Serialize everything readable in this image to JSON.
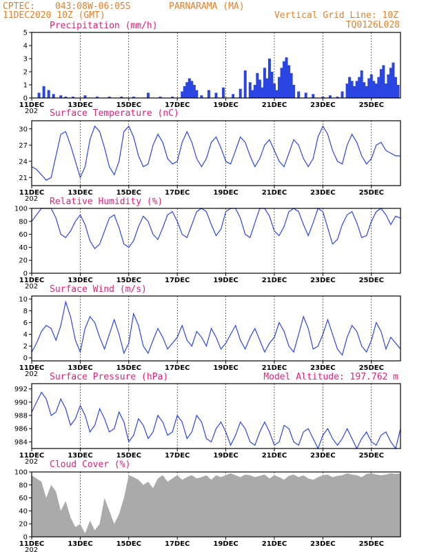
{
  "header": {
    "source": "CPTEC:",
    "coords": "043:08W-06:05S",
    "location": "PARNARAMA (MA)",
    "run": "11DEC2020 10Z (GMT)",
    "grid_note": "Vertical Grid Line: 10Z",
    "model": "TQ0126L028"
  },
  "x_axis": {
    "day_min": 11.0,
    "day_max": 26.2,
    "tick_labels": [
      "11DEC",
      "13DEC",
      "15DEC",
      "17DEC",
      "19DEC",
      "21DEC",
      "23DEC",
      "25DEC"
    ],
    "tick_days": [
      11,
      13,
      15,
      17,
      19,
      21,
      23,
      25
    ],
    "year_fragment": "202"
  },
  "model_altitude": "Model Altitude: 197.762 m",
  "colors": {
    "line": "#2b46e0",
    "bars": "#2b46e0",
    "cloud": "#aaaaaa",
    "title": "#e0207a",
    "header": "#e0802a"
  },
  "chart_data": [
    {
      "id": "precip",
      "type": "bar",
      "title": "Precipitation (mm/h)",
      "ylim": [
        0,
        5
      ],
      "yticks": [
        0,
        1,
        2,
        3,
        4,
        5
      ],
      "x": [
        11.3,
        11.5,
        11.7,
        11.9,
        12.2,
        12.4,
        12.7,
        13.2,
        13.7,
        14.2,
        14.7,
        15.2,
        15.8,
        16.3,
        16.8,
        17.2,
        17.3,
        17.4,
        17.5,
        17.6,
        17.7,
        17.8,
        18.0,
        18.3,
        18.6,
        18.9,
        19.3,
        19.6,
        19.8,
        20.0,
        20.1,
        20.2,
        20.3,
        20.4,
        20.5,
        20.6,
        20.7,
        20.8,
        20.9,
        21.0,
        21.1,
        21.2,
        21.3,
        21.4,
        21.5,
        21.6,
        21.7,
        21.8,
        22.0,
        22.3,
        22.6,
        23.0,
        23.3,
        23.6,
        23.8,
        24.0,
        24.1,
        24.2,
        24.3,
        24.4,
        24.5,
        24.6,
        24.7,
        24.8,
        24.9,
        25.0,
        25.1,
        25.2,
        25.3,
        25.4,
        25.5,
        25.6,
        25.7,
        25.8,
        25.9,
        26.0,
        26.1
      ],
      "values": [
        0.4,
        0.9,
        0.6,
        0.3,
        0.2,
        0.1,
        0.1,
        0.2,
        0.1,
        0.1,
        0.1,
        0.1,
        0.4,
        0.1,
        0.1,
        0.5,
        0.9,
        1.2,
        1.5,
        1.3,
        1.0,
        0.6,
        0.2,
        0.6,
        0.4,
        0.8,
        0.3,
        0.7,
        2.1,
        1.2,
        0.6,
        1.0,
        1.9,
        1.4,
        0.8,
        2.3,
        1.5,
        3.0,
        2.0,
        1.1,
        0.6,
        1.6,
        2.3,
        2.8,
        3.1,
        2.5,
        1.9,
        1.0,
        0.5,
        0.4,
        0.3,
        0.1,
        0.2,
        0.1,
        0.5,
        1.1,
        1.6,
        1.3,
        0.9,
        1.3,
        1.6,
        2.1,
        1.2,
        0.9,
        1.5,
        1.8,
        1.3,
        1.1,
        1.6,
        2.2,
        2.5,
        1.1,
        1.8,
        2.3,
        2.7,
        1.6,
        1.0
      ]
    },
    {
      "id": "temp",
      "type": "line",
      "title": "Surface Temperature (nC)",
      "ylim": [
        19.5,
        31.5
      ],
      "yticks": [
        21,
        24,
        27,
        30
      ],
      "x": [
        11.0,
        11.2,
        11.4,
        11.6,
        11.8,
        12.0,
        12.2,
        12.4,
        12.6,
        12.8,
        13.0,
        13.2,
        13.4,
        13.6,
        13.8,
        14.0,
        14.2,
        14.4,
        14.6,
        14.8,
        15.0,
        15.2,
        15.4,
        15.6,
        15.8,
        16.0,
        16.2,
        16.4,
        16.6,
        16.8,
        17.0,
        17.2,
        17.4,
        17.6,
        17.8,
        18.0,
        18.2,
        18.4,
        18.6,
        18.8,
        19.0,
        19.2,
        19.4,
        19.6,
        19.8,
        20.0,
        20.2,
        20.4,
        20.6,
        20.8,
        21.0,
        21.2,
        21.4,
        21.6,
        21.8,
        22.0,
        22.2,
        22.4,
        22.6,
        22.8,
        23.0,
        23.2,
        23.4,
        23.6,
        23.8,
        24.0,
        24.2,
        24.4,
        24.6,
        24.8,
        25.0,
        25.2,
        25.4,
        25.6,
        25.8,
        26.0,
        26.2
      ],
      "values": [
        23.0,
        22.5,
        21.5,
        20.5,
        21.0,
        25.0,
        29.0,
        29.5,
        27.0,
        24.0,
        21.0,
        23.0,
        28.0,
        30.5,
        29.5,
        26.5,
        23.0,
        21.5,
        24.0,
        29.5,
        30.5,
        28.5,
        25.0,
        23.0,
        23.5,
        27.0,
        29.0,
        27.5,
        24.5,
        23.5,
        24.0,
        27.5,
        29.5,
        27.5,
        24.5,
        23.0,
        24.5,
        27.5,
        28.5,
        26.5,
        24.0,
        23.5,
        26.0,
        28.5,
        27.5,
        25.0,
        23.0,
        24.5,
        27.0,
        28.0,
        26.0,
        24.0,
        23.0,
        25.5,
        28.0,
        27.0,
        24.5,
        23.0,
        24.5,
        28.5,
        30.5,
        29.0,
        26.0,
        24.0,
        23.5,
        27.0,
        29.0,
        27.5,
        25.0,
        23.5,
        24.5,
        27.0,
        27.5,
        26.0,
        25.5,
        25.0,
        25.0
      ]
    },
    {
      "id": "rh",
      "type": "line",
      "title": "Relative Humidity (%)",
      "ylim": [
        0,
        100
      ],
      "yticks": [
        0,
        20,
        40,
        60,
        80,
        100
      ],
      "x": [
        11.0,
        11.2,
        11.4,
        11.6,
        11.8,
        12.0,
        12.2,
        12.4,
        12.6,
        12.8,
        13.0,
        13.2,
        13.4,
        13.6,
        13.8,
        14.0,
        14.2,
        14.4,
        14.6,
        14.8,
        15.0,
        15.2,
        15.4,
        15.6,
        15.8,
        16.0,
        16.2,
        16.4,
        16.6,
        16.8,
        17.0,
        17.2,
        17.4,
        17.6,
        17.8,
        18.0,
        18.2,
        18.4,
        18.6,
        18.8,
        19.0,
        19.2,
        19.4,
        19.6,
        19.8,
        20.0,
        20.2,
        20.4,
        20.6,
        20.8,
        21.0,
        21.2,
        21.4,
        21.6,
        21.8,
        22.0,
        22.2,
        22.4,
        22.6,
        22.8,
        23.0,
        23.2,
        23.4,
        23.6,
        23.8,
        24.0,
        24.2,
        24.4,
        24.6,
        24.8,
        25.0,
        25.2,
        25.4,
        25.6,
        25.8,
        26.0,
        26.2
      ],
      "values": [
        80,
        90,
        100,
        100,
        100,
        85,
        60,
        55,
        65,
        80,
        90,
        75,
        50,
        38,
        45,
        65,
        85,
        90,
        70,
        45,
        40,
        50,
        72,
        88,
        80,
        60,
        52,
        70,
        90,
        95,
        80,
        60,
        55,
        75,
        95,
        100,
        95,
        75,
        58,
        68,
        95,
        100,
        100,
        85,
        60,
        55,
        78,
        100,
        100,
        88,
        65,
        58,
        72,
        95,
        100,
        95,
        75,
        58,
        78,
        100,
        95,
        70,
        45,
        52,
        75,
        90,
        95,
        78,
        55,
        58,
        80,
        95,
        100,
        90,
        75,
        88,
        85
      ]
    },
    {
      "id": "wind",
      "type": "line",
      "title": "Surface Wind (m/s)",
      "ylim": [
        -0.5,
        10.5
      ],
      "yticks": [
        0,
        2,
        4,
        6,
        8,
        10
      ],
      "x": [
        11.0,
        11.2,
        11.4,
        11.6,
        11.8,
        12.0,
        12.2,
        12.4,
        12.6,
        12.8,
        13.0,
        13.2,
        13.4,
        13.6,
        13.8,
        14.0,
        14.2,
        14.4,
        14.6,
        14.8,
        15.0,
        15.2,
        15.4,
        15.6,
        15.8,
        16.0,
        16.2,
        16.4,
        16.6,
        16.8,
        17.0,
        17.2,
        17.4,
        17.6,
        17.8,
        18.0,
        18.2,
        18.4,
        18.6,
        18.8,
        19.0,
        19.2,
        19.4,
        19.6,
        19.8,
        20.0,
        20.2,
        20.4,
        20.6,
        20.8,
        21.0,
        21.2,
        21.4,
        21.6,
        21.8,
        22.0,
        22.2,
        22.4,
        22.6,
        22.8,
        23.0,
        23.2,
        23.4,
        23.6,
        23.8,
        24.0,
        24.2,
        24.4,
        24.6,
        24.8,
        25.0,
        25.2,
        25.4,
        25.6,
        25.8,
        26.0,
        26.2
      ],
      "values": [
        1.0,
        2.5,
        4.5,
        5.5,
        5.0,
        3.0,
        5.5,
        9.5,
        7.0,
        3.0,
        1.0,
        5.0,
        7.0,
        6.0,
        3.5,
        1.5,
        4.0,
        6.5,
        4.0,
        0.8,
        2.5,
        7.5,
        5.5,
        2.0,
        0.8,
        3.0,
        5.0,
        3.5,
        1.5,
        2.5,
        3.5,
        5.5,
        3.0,
        2.0,
        4.5,
        3.5,
        2.0,
        5.0,
        3.5,
        1.5,
        2.5,
        4.0,
        5.5,
        3.0,
        1.5,
        3.5,
        5.0,
        3.0,
        1.0,
        2.5,
        3.5,
        6.0,
        4.5,
        2.0,
        1.0,
        4.0,
        7.0,
        5.0,
        1.5,
        2.0,
        4.0,
        6.5,
        4.0,
        1.5,
        0.5,
        3.5,
        5.5,
        4.5,
        2.0,
        1.0,
        3.0,
        6.0,
        4.5,
        1.5,
        3.5,
        2.5,
        1.5
      ]
    },
    {
      "id": "pressure",
      "type": "line",
      "title": "Surface Pressure (hPa)",
      "ylim": [
        983,
        992.8
      ],
      "yticks": [
        984,
        986,
        988,
        990,
        992
      ],
      "x": [
        11.0,
        11.2,
        11.4,
        11.6,
        11.8,
        12.0,
        12.2,
        12.4,
        12.6,
        12.8,
        13.0,
        13.2,
        13.4,
        13.6,
        13.8,
        14.0,
        14.2,
        14.4,
        14.6,
        14.8,
        15.0,
        15.2,
        15.4,
        15.6,
        15.8,
        16.0,
        16.2,
        16.4,
        16.6,
        16.8,
        17.0,
        17.2,
        17.4,
        17.6,
        17.8,
        18.0,
        18.2,
        18.4,
        18.6,
        18.8,
        19.0,
        19.2,
        19.4,
        19.6,
        19.8,
        20.0,
        20.2,
        20.4,
        20.6,
        20.8,
        21.0,
        21.2,
        21.4,
        21.6,
        21.8,
        22.0,
        22.2,
        22.4,
        22.6,
        22.8,
        23.0,
        23.2,
        23.4,
        23.6,
        23.8,
        24.0,
        24.2,
        24.4,
        24.6,
        24.8,
        25.0,
        25.2,
        25.4,
        25.6,
        25.8,
        26.0,
        26.2
      ],
      "values": [
        988.5,
        990.0,
        991.5,
        990.5,
        988.0,
        988.5,
        990.5,
        989.0,
        986.5,
        987.5,
        989.5,
        988.0,
        985.5,
        986.5,
        989.0,
        987.5,
        985.5,
        986.0,
        988.5,
        987.0,
        984.0,
        985.0,
        987.5,
        986.5,
        984.5,
        985.5,
        988.0,
        987.0,
        985.0,
        985.5,
        988.0,
        987.0,
        984.5,
        985.5,
        988.0,
        987.0,
        984.5,
        984.0,
        986.0,
        987.0,
        985.5,
        983.5,
        985.0,
        987.0,
        986.0,
        984.0,
        983.5,
        985.5,
        987.0,
        985.5,
        983.5,
        984.0,
        986.5,
        986.0,
        984.0,
        983.5,
        985.5,
        986.0,
        984.5,
        983.0,
        985.0,
        986.0,
        984.5,
        983.5,
        984.5,
        986.0,
        984.5,
        983.0,
        984.5,
        985.5,
        984.0,
        983.5,
        985.0,
        985.5,
        984.0,
        983.0,
        986.0
      ]
    },
    {
      "id": "cloud",
      "type": "area",
      "title": "Cloud Cover (%)",
      "ylim": [
        0,
        100
      ],
      "yticks": [
        0,
        20,
        40,
        60,
        80,
        100
      ],
      "x": [
        11.0,
        11.2,
        11.4,
        11.6,
        11.8,
        12.0,
        12.2,
        12.4,
        12.6,
        12.8,
        13.0,
        13.2,
        13.4,
        13.6,
        13.8,
        14.0,
        14.2,
        14.4,
        14.6,
        14.8,
        15.0,
        15.2,
        15.4,
        15.6,
        15.8,
        16.0,
        16.2,
        16.4,
        16.6,
        16.8,
        17.0,
        17.2,
        17.4,
        17.6,
        17.8,
        18.0,
        18.2,
        18.4,
        18.6,
        18.8,
        19.0,
        19.2,
        19.4,
        19.6,
        19.8,
        20.0,
        20.2,
        20.4,
        20.6,
        20.8,
        21.0,
        21.2,
        21.4,
        21.6,
        21.8,
        22.0,
        22.2,
        22.4,
        22.6,
        22.8,
        23.0,
        23.2,
        23.4,
        23.6,
        23.8,
        24.0,
        24.2,
        24.4,
        24.6,
        24.8,
        25.0,
        25.2,
        25.4,
        25.6,
        25.8,
        26.0,
        26.2
      ],
      "values": [
        95,
        90,
        85,
        60,
        80,
        70,
        40,
        55,
        30,
        15,
        20,
        5,
        25,
        10,
        20,
        60,
        40,
        20,
        35,
        60,
        95,
        92,
        88,
        80,
        85,
        75,
        90,
        95,
        85,
        90,
        95,
        88,
        92,
        95,
        90,
        92,
        95,
        88,
        95,
        92,
        95,
        98,
        95,
        92,
        96,
        95,
        92,
        94,
        96,
        90,
        95,
        92,
        88,
        94,
        96,
        92,
        95,
        90,
        88,
        92,
        95,
        96,
        92,
        94,
        95,
        98,
        96,
        95,
        92,
        97,
        98,
        96,
        95,
        96,
        98,
        97,
        98
      ]
    }
  ]
}
